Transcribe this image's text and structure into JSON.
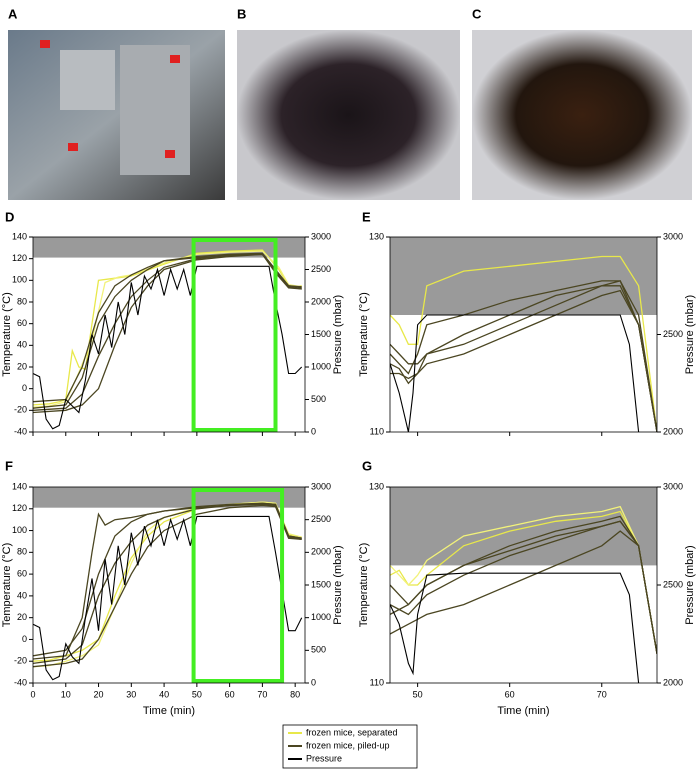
{
  "panels": [
    "A",
    "B",
    "C",
    "D",
    "E",
    "F",
    "G"
  ],
  "chart_data": [
    {
      "type": "line",
      "ylabel": "Temperature (°C)",
      "y2label": "Pressure (mbar)",
      "xlim": [
        0,
        83
      ],
      "xticks": [
        0,
        10,
        20,
        30,
        40,
        50,
        60,
        70,
        80
      ],
      "xtick_labels": false,
      "ylim": [
        -40,
        140
      ],
      "yticks": [
        -40,
        -20,
        0,
        20,
        40,
        60,
        80,
        100,
        120,
        140
      ],
      "y2lim": [
        0,
        3000
      ],
      "y2ticks": [
        0,
        500,
        1000,
        1500,
        2000,
        2500,
        3000
      ],
      "shaded_range": [
        121,
        140
      ],
      "highlight_x": [
        49,
        74
      ],
      "series": [
        {
          "name": "frozen mice, separated",
          "color": "#e8e84a",
          "x": [
            0,
            5,
            8,
            10,
            12,
            14,
            16,
            18,
            20,
            25,
            30,
            40,
            50,
            60,
            70,
            75,
            78,
            80,
            82
          ],
          "values": [
            -15,
            -14,
            -12,
            -10,
            35,
            20,
            18,
            60,
            100,
            102,
            104,
            115,
            125,
            127,
            128,
            110,
            95,
            94,
            95
          ]
        },
        {
          "color": "#f2f27a",
          "x": [
            0,
            5,
            10,
            14,
            18,
            22,
            26,
            30,
            40,
            50,
            60,
            70,
            75,
            78,
            82
          ],
          "values": [
            -17,
            -16,
            -12,
            15,
            45,
            98,
            103,
            105,
            116,
            124,
            126,
            127,
            112,
            96,
            94
          ]
        },
        {
          "name": "frozen mice, piled-up",
          "color": "#4b4622",
          "x": [
            0,
            10,
            15,
            20,
            25,
            30,
            35,
            40,
            50,
            60,
            70,
            74,
            78,
            82
          ],
          "values": [
            -18,
            -15,
            10,
            60,
            85,
            100,
            110,
            118,
            122,
            124,
            125,
            110,
            95,
            93
          ]
        },
        {
          "color": "#4b4622",
          "x": [
            0,
            10,
            15,
            20,
            25,
            30,
            35,
            40,
            50,
            60,
            70,
            74,
            78,
            82
          ],
          "values": [
            -20,
            -18,
            -5,
            30,
            60,
            85,
            100,
            112,
            120,
            123,
            124,
            108,
            94,
            92
          ]
        },
        {
          "color": "#4b4622",
          "x": [
            0,
            10,
            15,
            20,
            25,
            30,
            35,
            40,
            50,
            60,
            70,
            74,
            78,
            82
          ],
          "values": [
            -12,
            -10,
            20,
            70,
            95,
            105,
            112,
            118,
            121,
            123,
            124,
            109,
            95,
            94
          ]
        },
        {
          "color": "#4b4622",
          "x": [
            0,
            10,
            15,
            20,
            25,
            30,
            35,
            40,
            50,
            60,
            70,
            74,
            78,
            82
          ],
          "values": [
            -22,
            -20,
            -15,
            0,
            40,
            75,
            95,
            110,
            119,
            122,
            124,
            107,
            93,
            92
          ]
        },
        {
          "name": "Pressure",
          "color": "#000000",
          "axis": "y2",
          "x": [
            0,
            2,
            4,
            6,
            8,
            10,
            12,
            14,
            16,
            18,
            20,
            22,
            24,
            26,
            28,
            30,
            32,
            34,
            36,
            38,
            40,
            42,
            44,
            46,
            48,
            50,
            60,
            70,
            72,
            74,
            76,
            78,
            80,
            82
          ],
          "values": [
            900,
            850,
            200,
            50,
            100,
            500,
            400,
            300,
            800,
            1500,
            1200,
            1800,
            1300,
            2000,
            1500,
            2300,
            1800,
            2400,
            2200,
            2500,
            2100,
            2500,
            2200,
            2500,
            2100,
            2550,
            2550,
            2550,
            2550,
            2000,
            1500,
            900,
            900,
            1000
          ]
        }
      ]
    },
    {
      "type": "line",
      "ylabel": "Temperature (°C)",
      "y2label": "Pressure (mbar)",
      "xlim": [
        47,
        76
      ],
      "xticks": [
        50,
        60,
        70
      ],
      "xtick_labels": false,
      "ylim": [
        110,
        130
      ],
      "yticks": [
        110,
        130
      ],
      "y2lim": [
        2000,
        3000
      ],
      "y2ticks": [
        2000,
        2500,
        3000
      ],
      "shaded_range": [
        122,
        130
      ],
      "series": [
        {
          "color": "#e8e84a",
          "x": [
            47,
            48,
            49,
            50,
            51,
            55,
            60,
            65,
            70,
            72,
            74,
            76
          ],
          "values": [
            122,
            121,
            119,
            119,
            125,
            126.5,
            127,
            127.5,
            128,
            128,
            125,
            110
          ]
        },
        {
          "color": "#4b4622",
          "x": [
            47,
            48,
            49,
            50,
            51,
            55,
            60,
            65,
            70,
            72,
            74,
            76
          ],
          "values": [
            118,
            117,
            116,
            118,
            121,
            122,
            123.5,
            124.5,
            125.5,
            125.5,
            122,
            110
          ]
        },
        {
          "color": "#4b4622",
          "x": [
            47,
            48,
            49,
            50,
            51,
            55,
            60,
            65,
            70,
            72,
            74,
            76
          ],
          "values": [
            117,
            116.5,
            115,
            116,
            118,
            120,
            122,
            124,
            125,
            125,
            121,
            110
          ]
        },
        {
          "color": "#4b4622",
          "x": [
            47,
            48,
            49,
            50,
            51,
            55,
            60,
            65,
            70,
            72,
            74,
            76
          ],
          "values": [
            119,
            118,
            117,
            117,
            118,
            119,
            121,
            123,
            125,
            125.5,
            121,
            110
          ]
        },
        {
          "color": "#4b4622",
          "x": [
            47,
            48,
            49,
            50,
            51,
            55,
            60,
            65,
            70,
            72,
            74,
            76
          ],
          "values": [
            116,
            116,
            115.5,
            116,
            117,
            118,
            120,
            122,
            124,
            124.5,
            121,
            110
          ]
        },
        {
          "color": "#000000",
          "axis": "y2",
          "x": [
            47,
            48,
            49,
            49.5,
            50,
            51,
            55,
            60,
            65,
            70,
            72,
            73,
            74,
            76
          ],
          "values": [
            2350,
            2200,
            2000,
            2200,
            2550,
            2600,
            2600,
            2600,
            2600,
            2600,
            2600,
            2450,
            2000,
            1800
          ]
        }
      ]
    },
    {
      "type": "line",
      "ylabel": "Temperature (°C)",
      "y2label": "Pressure (mbar)",
      "xlabel": "Time (min)",
      "xlim": [
        0,
        83
      ],
      "xticks": [
        0,
        10,
        20,
        30,
        40,
        50,
        60,
        70,
        80
      ],
      "xtick_labels": true,
      "ylim": [
        -40,
        140
      ],
      "yticks": [
        -40,
        -20,
        0,
        20,
        40,
        60,
        80,
        100,
        120,
        140
      ],
      "y2lim": [
        0,
        3000
      ],
      "y2ticks": [
        0,
        500,
        1000,
        1500,
        2000,
        2500,
        3000
      ],
      "shaded_range": [
        121,
        140
      ],
      "highlight_x": [
        49,
        76
      ],
      "series": [
        {
          "color": "#e8e84a",
          "x": [
            0,
            5,
            10,
            15,
            20,
            25,
            30,
            35,
            40,
            50,
            60,
            70,
            74,
            78,
            82
          ],
          "values": [
            -20,
            -19,
            -15,
            -10,
            0,
            40,
            75,
            95,
            108,
            120,
            124,
            126,
            125,
            96,
            94
          ]
        },
        {
          "color": "#f2f27a",
          "x": [
            0,
            5,
            10,
            15,
            20,
            25,
            30,
            35,
            40,
            50,
            60,
            70,
            74,
            78,
            82
          ],
          "values": [
            -25,
            -24,
            -20,
            -15,
            -5,
            30,
            70,
            100,
            112,
            121,
            124,
            126,
            125,
            97,
            94
          ]
        },
        {
          "color": "#4b4622",
          "x": [
            0,
            10,
            15,
            18,
            20,
            22,
            25,
            30,
            40,
            50,
            60,
            70,
            74,
            78,
            82
          ],
          "values": [
            -18,
            -15,
            20,
            80,
            115,
            105,
            110,
            112,
            118,
            122,
            124,
            125,
            124,
            95,
            93
          ]
        },
        {
          "color": "#4b4622",
          "x": [
            0,
            10,
            15,
            20,
            25,
            30,
            35,
            40,
            50,
            60,
            70,
            74,
            78,
            82
          ],
          "values": [
            -22,
            -18,
            -5,
            40,
            70,
            90,
            105,
            112,
            120,
            123,
            124,
            123,
            94,
            92
          ]
        },
        {
          "color": "#4b4622",
          "x": [
            0,
            10,
            15,
            20,
            25,
            30,
            35,
            40,
            50,
            60,
            70,
            74,
            78,
            82
          ],
          "values": [
            -15,
            -10,
            10,
            60,
            95,
            108,
            115,
            118,
            121,
            123,
            125,
            124,
            95,
            93
          ]
        },
        {
          "color": "#4b4622",
          "x": [
            0,
            10,
            15,
            20,
            25,
            30,
            35,
            40,
            50,
            60,
            70,
            74,
            78,
            82
          ],
          "values": [
            -25,
            -22,
            -18,
            0,
            30,
            60,
            85,
            100,
            115,
            121,
            123,
            122,
            93,
            92
          ]
        },
        {
          "color": "#000000",
          "axis": "y2",
          "x": [
            0,
            2,
            4,
            6,
            8,
            10,
            12,
            14,
            16,
            18,
            20,
            22,
            24,
            26,
            28,
            30,
            32,
            34,
            36,
            38,
            40,
            42,
            44,
            46,
            48,
            50,
            60,
            70,
            72,
            74,
            76,
            78,
            80,
            82
          ],
          "values": [
            900,
            850,
            200,
            50,
            100,
            600,
            400,
            300,
            1000,
            1600,
            800,
            1900,
            1200,
            2100,
            1500,
            2300,
            1800,
            2400,
            2100,
            2500,
            2100,
            2500,
            2200,
            2500,
            2100,
            2550,
            2550,
            2550,
            2550,
            2000,
            1400,
            800,
            800,
            1000
          ]
        }
      ]
    },
    {
      "type": "line",
      "ylabel": "Temperature (°C)",
      "y2label": "Pressure (mbar)",
      "xlabel": "Time (min)",
      "xlim": [
        47,
        76
      ],
      "xticks": [
        50,
        60,
        70
      ],
      "xtick_labels": true,
      "ylim": [
        110,
        130
      ],
      "yticks": [
        110,
        130
      ],
      "y2lim": [
        2000,
        3000
      ],
      "y2ticks": [
        2000,
        2500,
        3000
      ],
      "shaded_range": [
        122,
        130
      ],
      "series": [
        {
          "color": "#e8e84a",
          "x": [
            47,
            48,
            49,
            50,
            51,
            55,
            60,
            65,
            70,
            72,
            74,
            76
          ],
          "values": [
            121,
            121.5,
            120,
            120,
            121,
            124,
            125.5,
            126.5,
            127,
            127.5,
            124,
            113
          ]
        },
        {
          "color": "#f2f27a",
          "x": [
            47,
            48,
            49,
            50,
            51,
            55,
            60,
            65,
            70,
            72,
            74,
            76
          ],
          "values": [
            122,
            121,
            120,
            121,
            122.5,
            125,
            126,
            127,
            127.5,
            128,
            124,
            113
          ]
        },
        {
          "color": "#4b4622",
          "x": [
            47,
            48,
            49,
            50,
            51,
            55,
            60,
            65,
            70,
            72,
            74,
            76
          ],
          "values": [
            120,
            119,
            118,
            119,
            120,
            122,
            124,
            125.5,
            126.5,
            127,
            124,
            113
          ]
        },
        {
          "color": "#4b4622",
          "x": [
            47,
            48,
            49,
            50,
            51,
            55,
            60,
            65,
            70,
            72,
            74,
            76
          ],
          "values": [
            118,
            117.5,
            117,
            118,
            119,
            121,
            123,
            124.5,
            126,
            126.5,
            124,
            113
          ]
        },
        {
          "color": "#4b4622",
          "x": [
            47,
            48,
            49,
            50,
            51,
            55,
            60,
            65,
            70,
            72,
            74,
            76
          ],
          "values": [
            117,
            117.5,
            118,
            119,
            120,
            122,
            123.5,
            125,
            126,
            126.5,
            124,
            113
          ]
        },
        {
          "color": "#4b4622",
          "x": [
            47,
            48,
            49,
            50,
            51,
            55,
            60,
            65,
            70,
            72,
            74,
            76
          ],
          "values": [
            115,
            115.5,
            116,
            116.5,
            117,
            118,
            120,
            122,
            124,
            125.5,
            124,
            113
          ]
        },
        {
          "color": "#000000",
          "axis": "y2",
          "x": [
            47,
            48,
            49,
            49.5,
            50,
            51,
            55,
            60,
            65,
            70,
            72,
            73,
            74,
            76
          ],
          "values": [
            2400,
            2300,
            2100,
            2050,
            2350,
            2550,
            2560,
            2560,
            2560,
            2560,
            2560,
            2450,
            2000,
            1800
          ]
        }
      ]
    }
  ]
}
